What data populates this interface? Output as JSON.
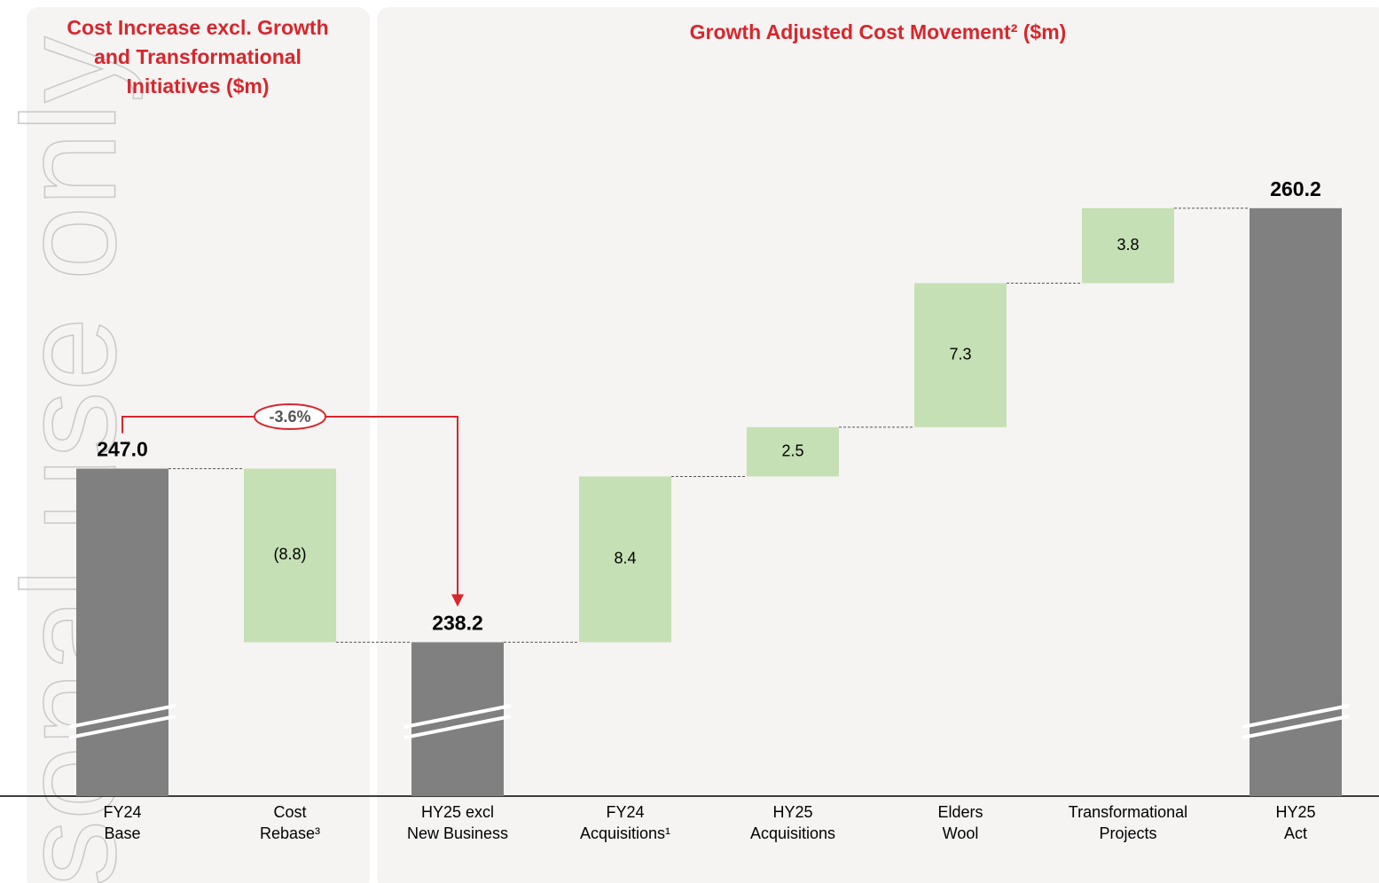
{
  "chart_data": {
    "type": "waterfall",
    "left_title": [
      "Cost Increase excl. Growth",
      "and Transformational",
      "Initiatives ($m)"
    ],
    "title": "Growth Adjusted Cost Movement² ($m)",
    "watermark": "sonal use only",
    "categories": [
      [
        "FY24",
        "Base"
      ],
      [
        "Cost",
        "Rebase³"
      ],
      [
        "HY25 excl",
        "New Business"
      ],
      [
        "FY24",
        "Acquisitions¹"
      ],
      [
        "HY25",
        "Acquisitions"
      ],
      [
        "Elders",
        "Wool"
      ],
      [
        "Transformational",
        "Projects"
      ],
      [
        "HY25",
        "Act"
      ]
    ],
    "values": [
      247.0,
      -8.8,
      238.2,
      8.4,
      2.5,
      7.3,
      3.8,
      260.2
    ],
    "value_labels": [
      "247.0",
      "(8.8)",
      "238.2",
      "8.4",
      "2.5",
      "7.3",
      "3.8",
      "260.2"
    ],
    "kinds": [
      "total",
      "delta",
      "total",
      "delta",
      "delta",
      "delta",
      "delta",
      "total"
    ],
    "total_color": "#808080",
    "delta_color": "#c5e0b4",
    "annotation": "-3.6%",
    "annotation_color": "#d7262d",
    "ylim": [
      230.4,
      265
    ]
  }
}
